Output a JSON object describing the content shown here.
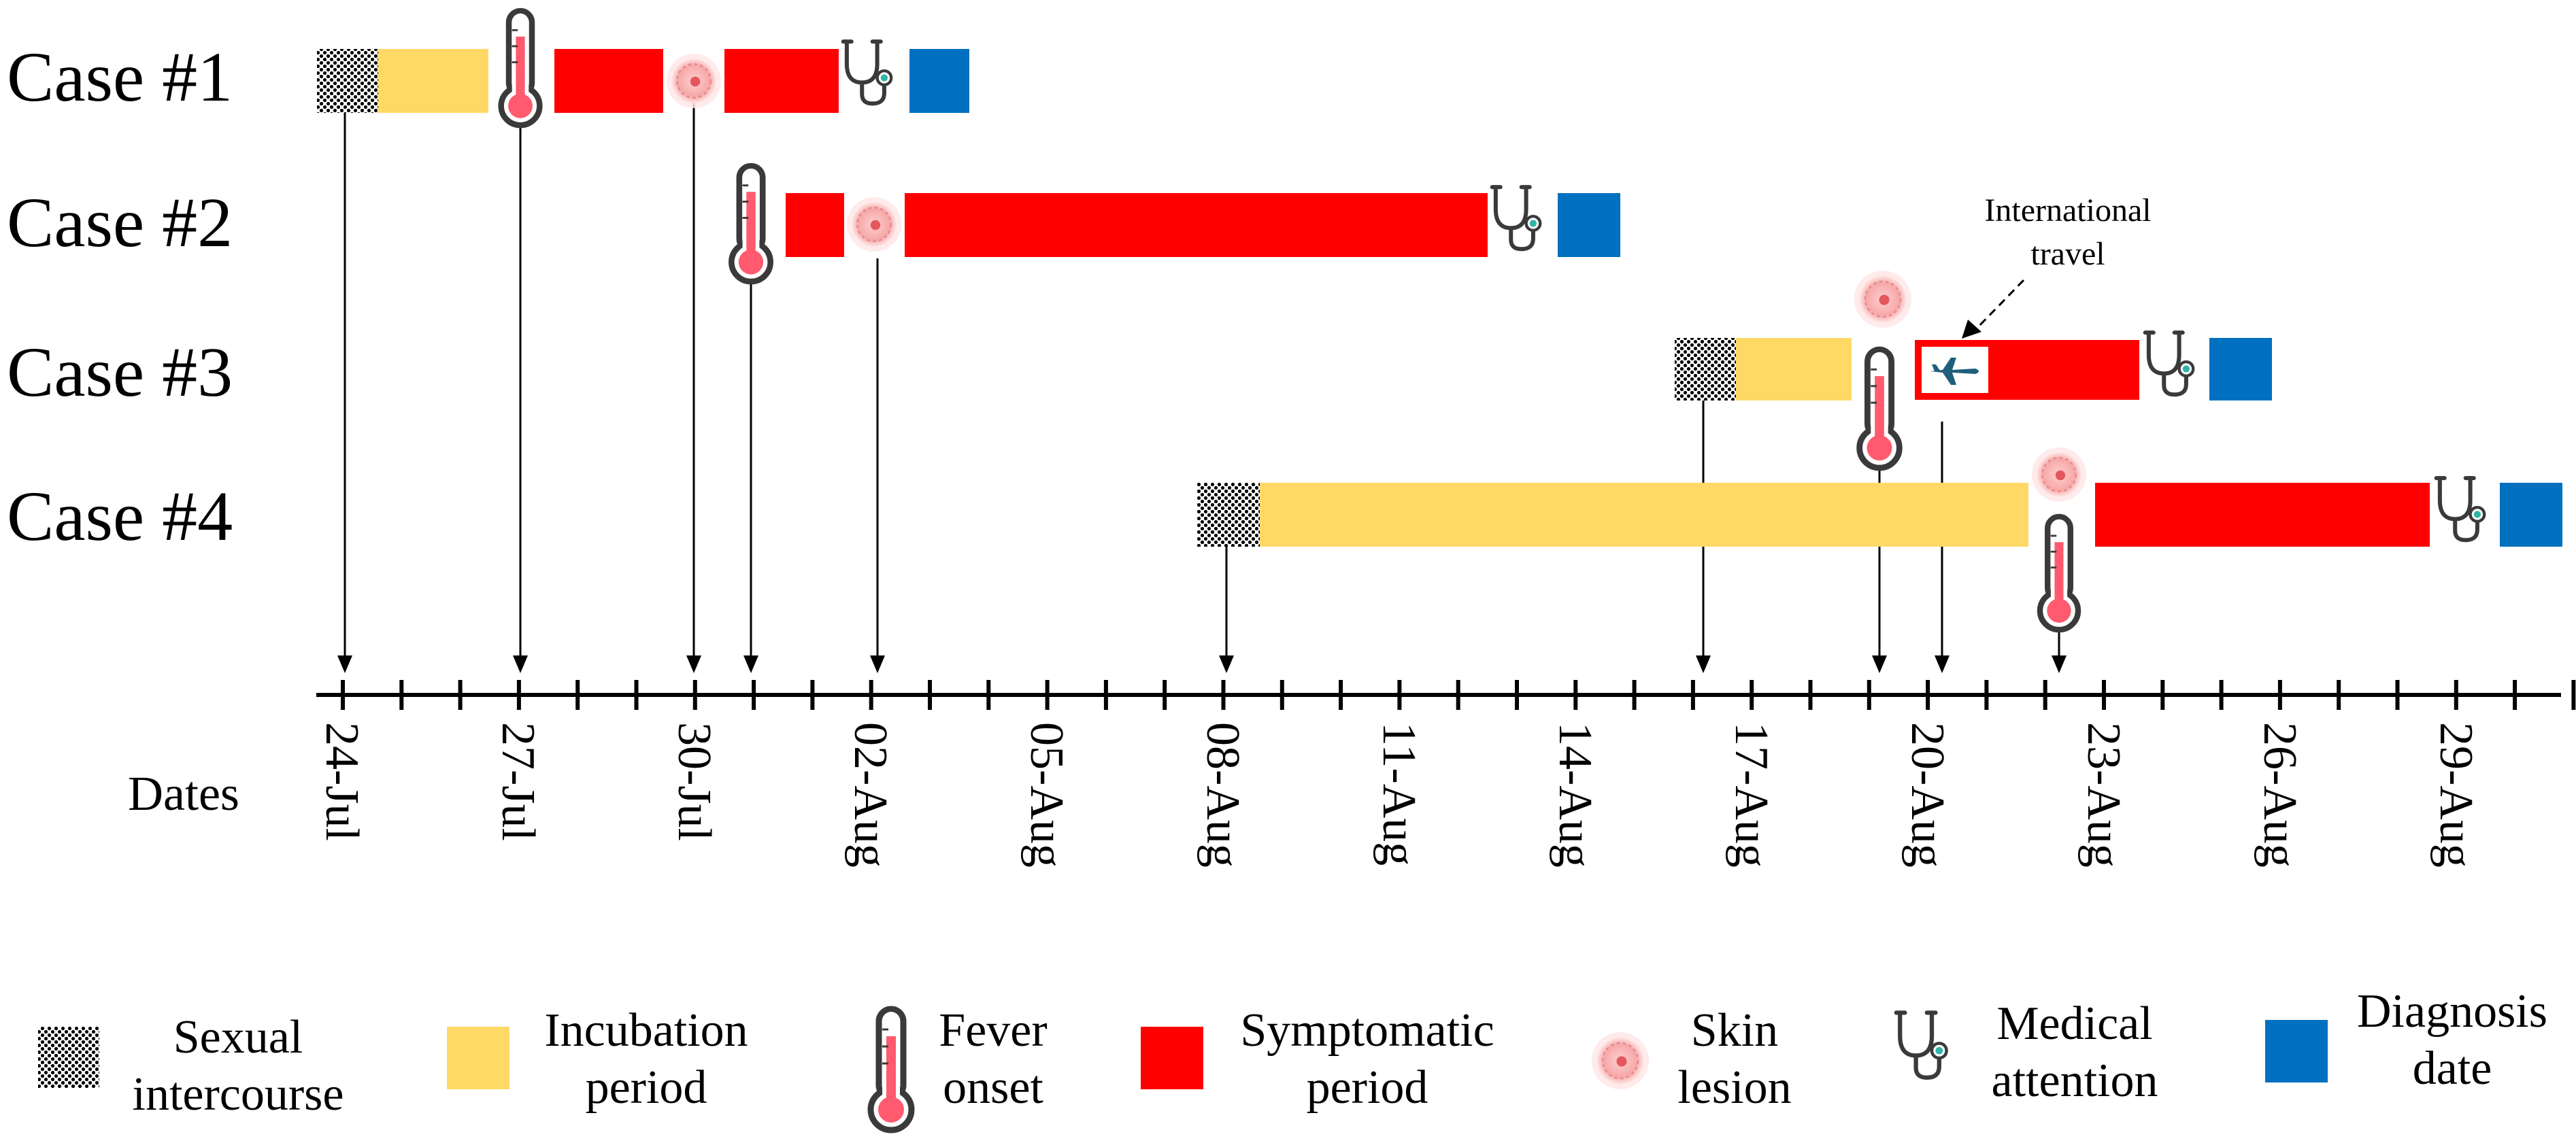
{
  "cases": [
    {
      "label": "Case #1"
    },
    {
      "label": "Case #2"
    },
    {
      "label": "Case #3"
    },
    {
      "label": "Case #4"
    }
  ],
  "axis": {
    "label": "Dates",
    "tick_labels": [
      "24-Jul",
      "27-Jul",
      "30-Jul",
      "02-Aug",
      "05-Aug",
      "08-Aug",
      "11-Aug",
      "14-Aug",
      "17-Aug",
      "20-Aug",
      "23-Aug",
      "26-Aug",
      "29-Aug"
    ]
  },
  "annotation": {
    "line1": "International",
    "line2": "travel"
  },
  "legend": {
    "sexual": {
      "line1": "Sexual",
      "line2": "intercourse"
    },
    "incubation": {
      "line1": "Incubation",
      "line2": "period"
    },
    "fever": {
      "line1": "Fever",
      "line2": "onset"
    },
    "symptomatic": {
      "line1": "Symptomatic",
      "line2": "period"
    },
    "skin": {
      "line1": "Skin",
      "line2": "lesion"
    },
    "medical": {
      "line1": "Medical",
      "line2": "attention"
    },
    "diagnosis": {
      "line1": "Diagnosis",
      "line2": "date"
    }
  },
  "colors": {
    "incubation": "#FFD966",
    "symptomatic": "#FF0000",
    "diagnosis": "#0070C0",
    "sexual": "#000000",
    "thermometer": "#FF5A6E",
    "lesion": "#F4B6B6",
    "stethoscope": "#3A3A3A",
    "stethoscope_bell": "#2FB5A8",
    "plane": "#1F5F7A"
  }
}
